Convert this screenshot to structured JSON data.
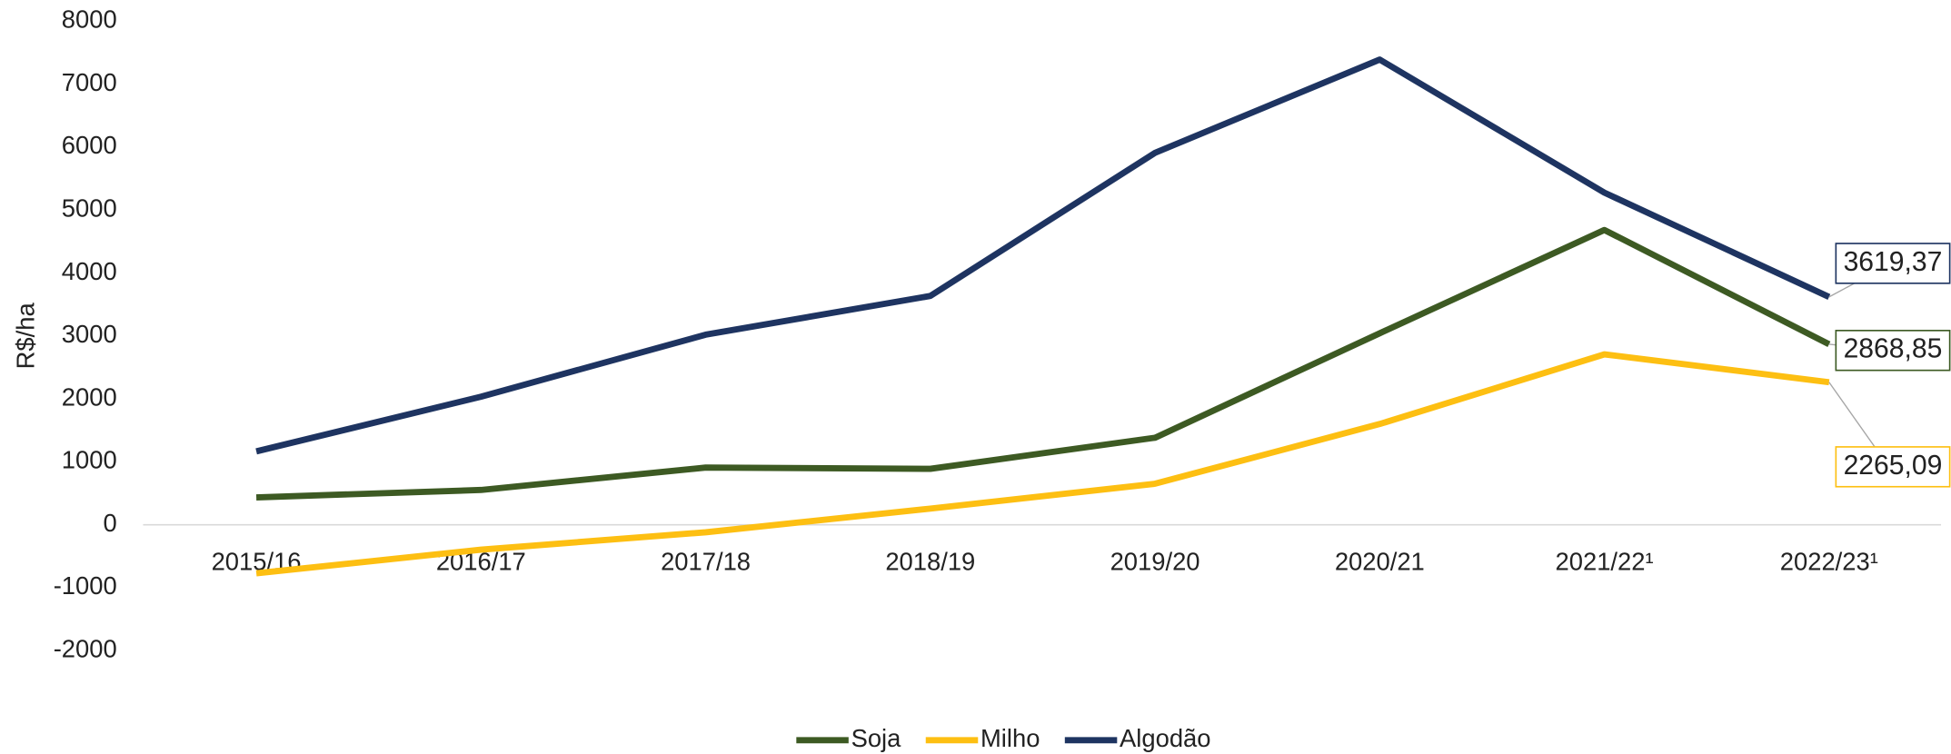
{
  "chart_data": {
    "type": "line",
    "y_label": "R$/ha",
    "categories": [
      "2015/16",
      "2016/17",
      "2017/18",
      "2018/19",
      "2019/20",
      "2020/21",
      "2021/22¹",
      "2022/23¹"
    ],
    "series": [
      {
        "name": "Soja",
        "color": "#3d5a23",
        "values": [
          435,
          553,
          909,
          889,
          1383,
          3043,
          4684,
          2868.85
        ],
        "value_labels": [
          null,
          null,
          null,
          null,
          null,
          null,
          null,
          "2868,85"
        ]
      },
      {
        "name": "Milho",
        "color": "#fdbf12",
        "values": [
          -771,
          -395,
          -119,
          257,
          652,
          1601,
          2708,
          2265.09
        ],
        "value_labels": [
          null,
          null,
          null,
          null,
          null,
          null,
          null,
          "2265,09"
        ]
      },
      {
        "name": "Algodão",
        "color": "#1e3461",
        "values": [
          1166,
          2035,
          3020,
          3636,
          5909,
          7391,
          5277,
          3619.37
        ],
        "value_labels": [
          null,
          null,
          null,
          null,
          null,
          null,
          null,
          "3619,37"
        ]
      }
    ],
    "ylim": [
      -2000,
      8000
    ],
    "yticks": [
      -2000,
      -1000,
      0,
      1000,
      2000,
      3000,
      4000,
      5000,
      6000,
      7000,
      8000
    ],
    "legend": "bottom"
  }
}
